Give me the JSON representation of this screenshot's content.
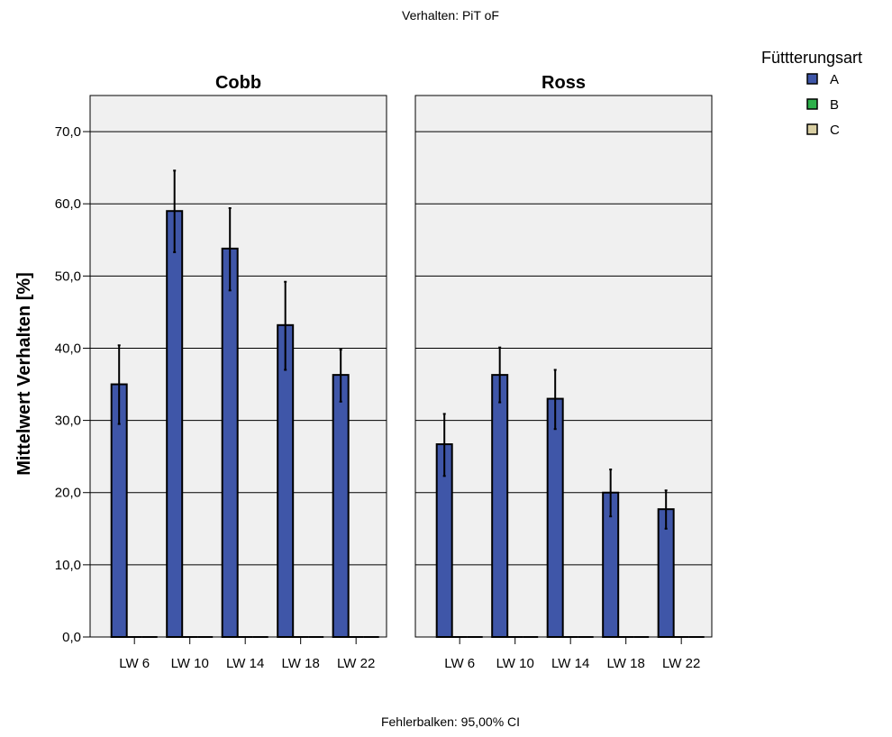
{
  "chart_data": {
    "type": "bar",
    "title": "Verhalten: PiT oF",
    "footnote": "Fehlerbalken: 95,00% CI",
    "ylabel": "Mittelwert Verhalten [%]",
    "ylim": [
      0,
      70
    ],
    "yticks": [
      "0,0",
      "10,0",
      "20,0",
      "30,0",
      "40,0",
      "50,0",
      "60,0",
      "70,0"
    ],
    "ytick_values": [
      0,
      10,
      20,
      30,
      40,
      50,
      60,
      70
    ],
    "categories": [
      "LW 6",
      "LW 10",
      "LW 14",
      "LW 18",
      "LW 22"
    ],
    "legend": {
      "title": "Füttterungsart",
      "placement": "top-right",
      "entries": [
        {
          "label": "A",
          "color": "#3f56a8"
        },
        {
          "label": "B",
          "color": "#2db04a"
        },
        {
          "label": "C",
          "color": "#d9cfa3"
        }
      ]
    },
    "grid": true,
    "panels": [
      {
        "title": "Cobb",
        "series": [
          {
            "name": "A",
            "values": [
              35.0,
              59.0,
              53.8,
              43.2,
              36.3
            ],
            "ci_low": [
              29.5,
              53.3,
              48.0,
              37.0,
              32.6
            ],
            "ci_high": [
              40.4,
              64.6,
              59.4,
              49.2,
              39.8
            ]
          },
          {
            "name": "B",
            "values": [
              0,
              0,
              0,
              0,
              0
            ]
          },
          {
            "name": "C",
            "values": [
              0,
              0,
              0,
              0,
              0
            ]
          }
        ]
      },
      {
        "title": "Ross",
        "series": [
          {
            "name": "A",
            "values": [
              26.7,
              36.3,
              33.0,
              20.0,
              17.7
            ],
            "ci_low": [
              22.3,
              32.5,
              28.8,
              16.7,
              15.0
            ],
            "ci_high": [
              30.9,
              40.1,
              37.0,
              23.2,
              20.3
            ]
          },
          {
            "name": "B",
            "values": [
              0,
              0,
              0,
              0,
              0
            ]
          },
          {
            "name": "C",
            "values": [
              0,
              0,
              0,
              0,
              0
            ]
          }
        ]
      }
    ]
  }
}
